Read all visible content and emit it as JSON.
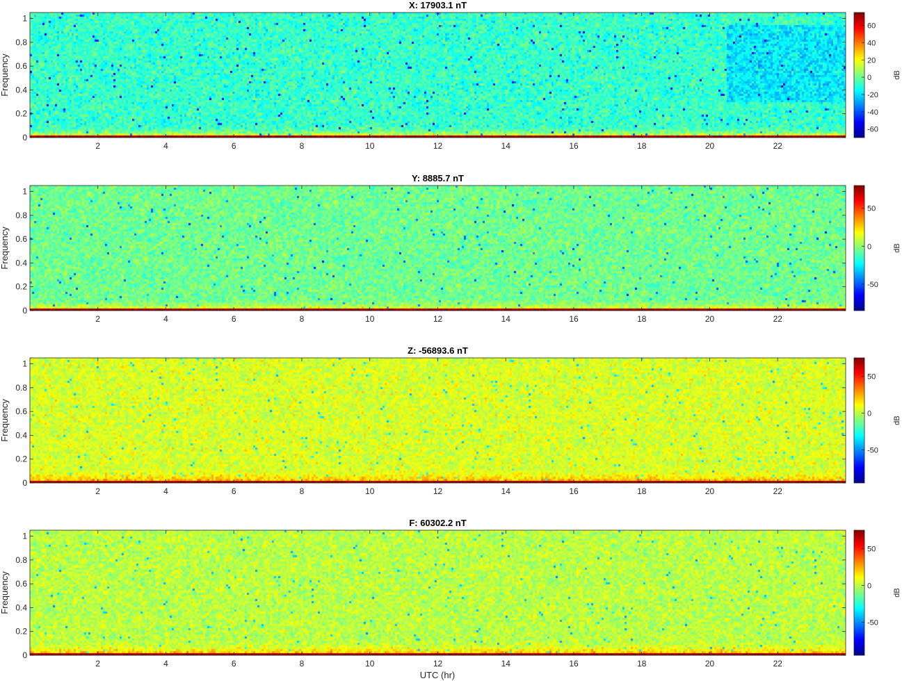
{
  "figure": {
    "xlabel": "UTC (hr)"
  },
  "colormap": "jet",
  "chart_data": [
    {
      "type": "heatmap",
      "title": "X: 17903.1 nT",
      "xlabel": "",
      "ylabel": "Frequency",
      "xlim": [
        0,
        24
      ],
      "ylim": [
        0,
        1.05
      ],
      "xticks": [
        2,
        4,
        6,
        8,
        10,
        12,
        14,
        16,
        18,
        20,
        22
      ],
      "yticks": [
        0,
        0.2,
        0.4,
        0.6,
        0.8,
        1
      ],
      "colorbar": {
        "label": "dB",
        "range": [
          -70,
          75
        ],
        "ticks": [
          -60,
          -40,
          -20,
          0,
          20,
          40,
          60
        ]
      },
      "typical_level_db": -8,
      "low_freq_band": {
        "freq_max": 0.05,
        "level_db": 40
      },
      "bottom_band": {
        "freq_max": 0.015,
        "level_db": 70
      },
      "quiet_region": {
        "x": [
          20.5,
          24
        ],
        "y": [
          0.3,
          0.95
        ]
      }
    },
    {
      "type": "heatmap",
      "title": "Y: 8885.7 nT",
      "xlabel": "",
      "ylabel": "Frequency",
      "xlim": [
        0,
        24
      ],
      "ylim": [
        0,
        1.05
      ],
      "xticks": [
        2,
        4,
        6,
        8,
        10,
        12,
        14,
        16,
        18,
        20,
        22
      ],
      "yticks": [
        0,
        0.2,
        0.4,
        0.6,
        0.8,
        1
      ],
      "colorbar": {
        "label": "dB",
        "range": [
          -85,
          80
        ],
        "ticks": [
          -50,
          0,
          50
        ]
      },
      "typical_level_db": -5,
      "low_freq_band": {
        "freq_max": 0.05,
        "level_db": 35
      },
      "bottom_band": {
        "freq_max": 0.015,
        "level_db": 75
      }
    },
    {
      "type": "heatmap",
      "title": "Z: -56893.6 nT",
      "xlabel": "",
      "ylabel": "Frequency",
      "xlim": [
        0,
        24
      ],
      "ylim": [
        0,
        1.05
      ],
      "xticks": [
        2,
        4,
        6,
        8,
        10,
        12,
        14,
        16,
        18,
        20,
        22
      ],
      "yticks": [
        0,
        0.2,
        0.4,
        0.6,
        0.8,
        1
      ],
      "colorbar": {
        "label": "dB",
        "range": [
          -95,
          75
        ],
        "ticks": [
          -50,
          0,
          50
        ]
      },
      "typical_level_db": 5,
      "low_freq_band": {
        "freq_max": 0.06,
        "level_db": 40
      },
      "bottom_band": {
        "freq_max": 0.015,
        "level_db": 70
      }
    },
    {
      "type": "heatmap",
      "title": "F: 60302.2 nT",
      "xlabel": "UTC (hr)",
      "ylabel": "Frequency",
      "xlim": [
        0,
        24
      ],
      "ylim": [
        0,
        1.05
      ],
      "xticks": [
        2,
        4,
        6,
        8,
        10,
        12,
        14,
        16,
        18,
        20,
        22
      ],
      "yticks": [
        0,
        0.2,
        0.4,
        0.6,
        0.8,
        1
      ],
      "colorbar": {
        "label": "dB",
        "range": [
          -95,
          75
        ],
        "ticks": [
          -50,
          0,
          50
        ]
      },
      "typical_level_db": 0,
      "low_freq_band": {
        "freq_max": 0.06,
        "level_db": 40
      },
      "bottom_band": {
        "freq_max": 0.015,
        "level_db": 70
      }
    }
  ]
}
